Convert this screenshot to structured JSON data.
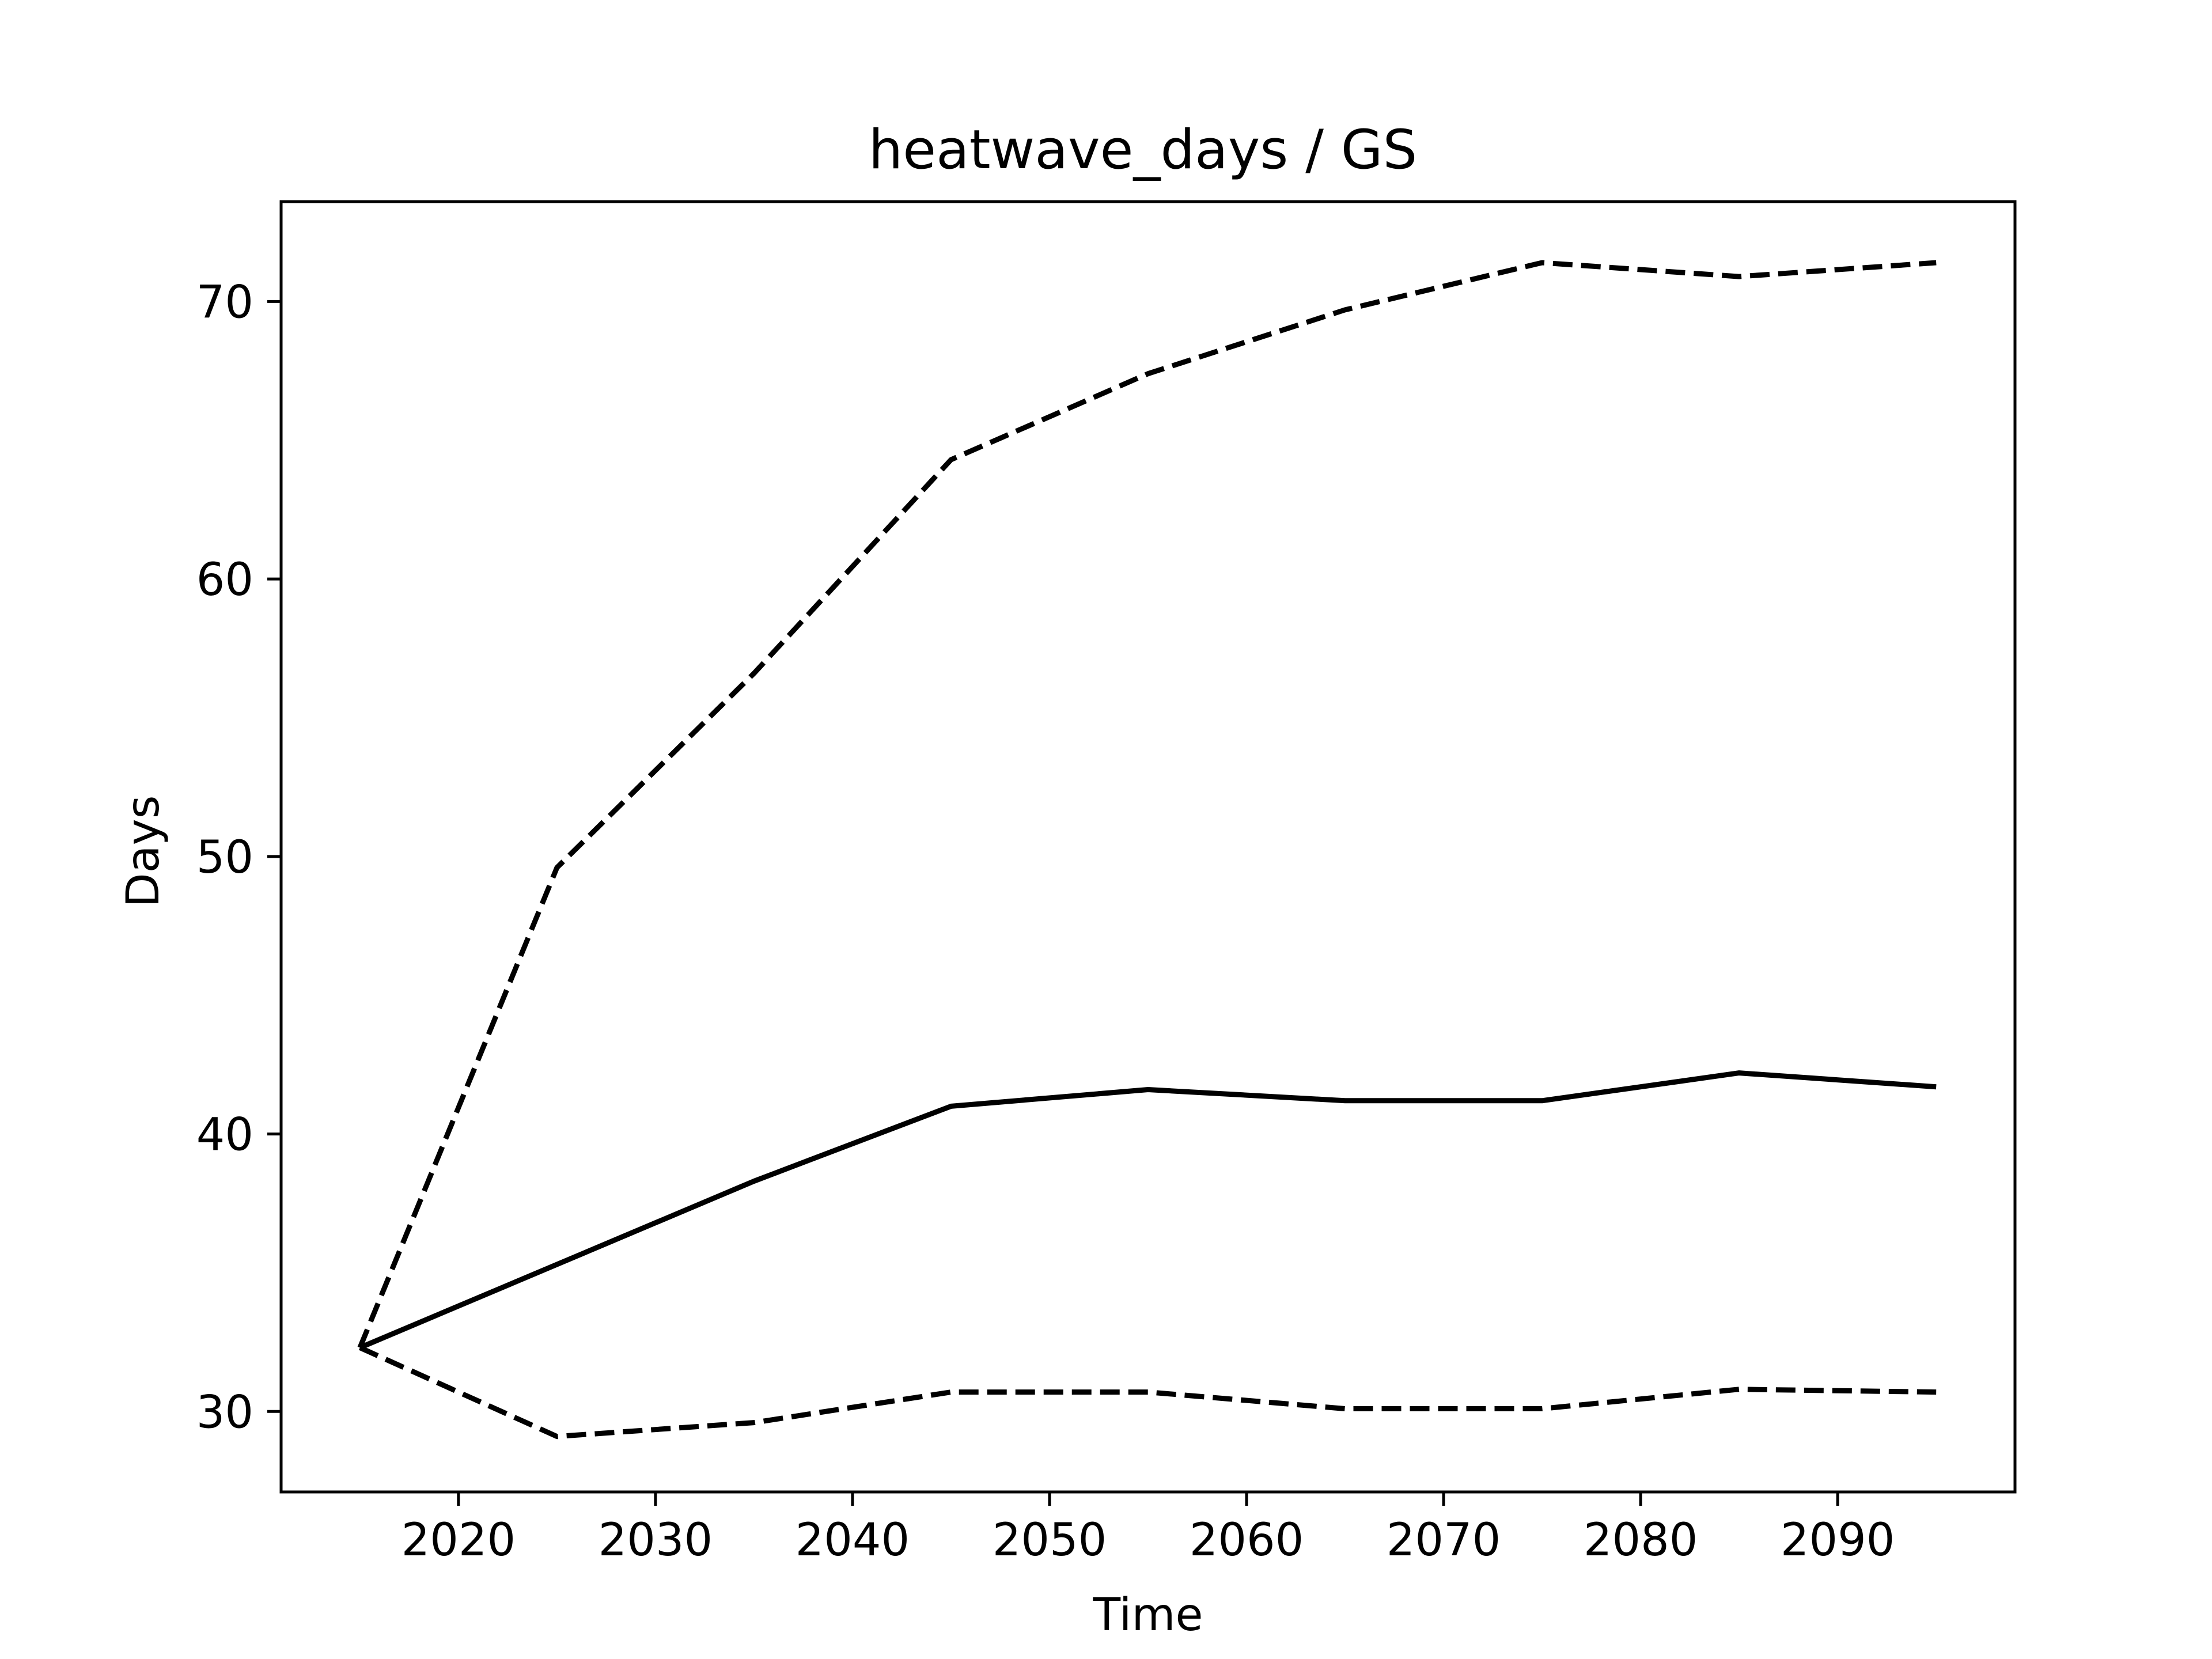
{
  "chart_data": {
    "type": "line",
    "title": "heatwave_days / GS",
    "xlabel": "Time",
    "ylabel": "Days",
    "xlim": [
      2011,
      2099
    ],
    "ylim": [
      27.1,
      73.6
    ],
    "xticks": [
      2020,
      2030,
      2040,
      2050,
      2060,
      2070,
      2080,
      2090
    ],
    "yticks": [
      30,
      40,
      50,
      60,
      70
    ],
    "grid": false,
    "x": [
      2015,
      2025,
      2035,
      2045,
      2055,
      2065,
      2075,
      2085,
      2095
    ],
    "series": [
      {
        "style": "solid",
        "color": "#000000",
        "values": [
          32.3,
          35.3,
          38.3,
          41.0,
          41.6,
          41.2,
          41.2,
          42.2,
          41.7
        ]
      },
      {
        "style": "dashed",
        "color": "#000000",
        "values": [
          32.3,
          49.6,
          56.6,
          64.3,
          67.4,
          69.7,
          71.4,
          70.9,
          71.4
        ]
      },
      {
        "style": "dashed",
        "color": "#000000",
        "values": [
          32.3,
          29.1,
          29.6,
          30.7,
          30.7,
          30.1,
          30.1,
          30.8,
          30.7
        ]
      }
    ]
  }
}
